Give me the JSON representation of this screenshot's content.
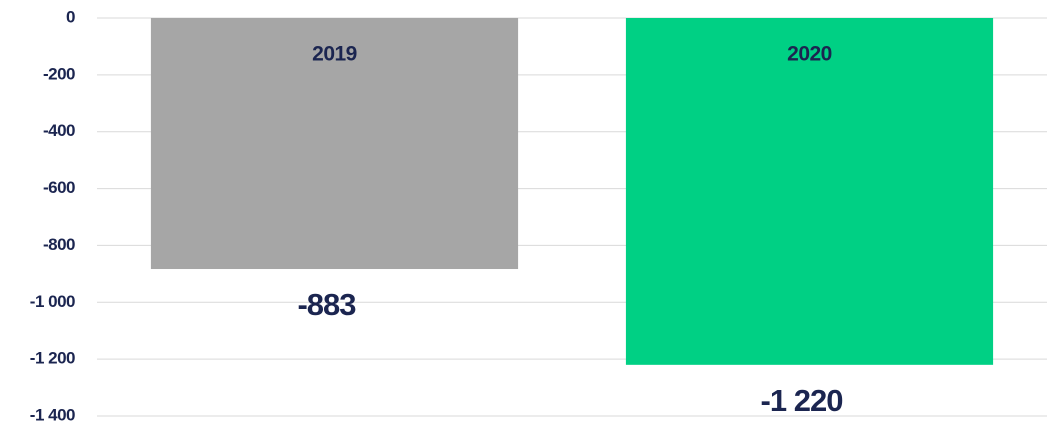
{
  "chart_data": {
    "type": "bar",
    "categories": [
      "2019",
      "2020"
    ],
    "values": [
      -883,
      -1220
    ],
    "value_labels": [
      "-883",
      "-1 220"
    ],
    "colors": [
      "#a6a6a6",
      "#00d084"
    ],
    "ylim": [
      -1400,
      0
    ],
    "yticks": [
      0,
      -200,
      -400,
      -600,
      -800,
      {
        "value": -1000,
        "label": "-1 000"
      },
      {
        "value": -1200,
        "label": "-1 200"
      },
      {
        "value": -1400,
        "label": "-1 400"
      }
    ],
    "grid": true
  }
}
